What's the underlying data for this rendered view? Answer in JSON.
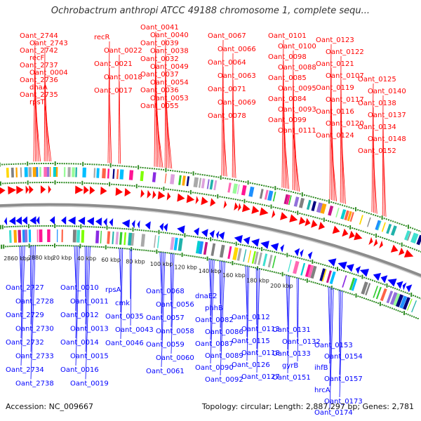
{
  "title": "Ochrobactrum anthropi ATCC 49188 chromosome 1, complete sequ...",
  "footer": {
    "accession": "Accession: NC_009667",
    "summary": "Topology: circular; Length: 2,887,297 bp; Genes: 2,781"
  },
  "colors": {
    "plus": "#ff0000",
    "minus": "#0000ff",
    "ring": "#8c8c8c",
    "dots": "#2e8b22"
  },
  "scale_ticks": [
    "2860 kbp",
    "2880 kbp",
    "20 kbp",
    "40 kbp",
    "60 kbp",
    "80 kbp",
    "100 kbp",
    "120 kbp",
    "140 kbp",
    "160 kbp",
    "180 kbp",
    "200 kbp"
  ],
  "top_labels": [
    "Oant_2744",
    "Oant_2743",
    "Oant_2742",
    "recF",
    "Oant_2737",
    "Oant_0004",
    "Oant_2736",
    "dnaA",
    "Oant_2735",
    "rpsT",
    "recR",
    "Oant_0022",
    "Oant_0021",
    "Oant_0018",
    "Oant_0017",
    "Oant_0041",
    "Oant_0040",
    "Oant_0039",
    "Oant_0038",
    "Oant_0032",
    "Oant_0049",
    "Oant_0037",
    "Oant_0054",
    "Oant_0036",
    "Oant_0053",
    "Oant_0055",
    "Oant_0067",
    "Oant_0066",
    "Oant_0064",
    "Oant_0063",
    "Oant_0071",
    "Oant_0069",
    "Oant_0078",
    "Oant_0101",
    "Oant_0100",
    "Oant_0098",
    "Oant_0088",
    "Oant_0085",
    "Oant_0095",
    "Oant_0084",
    "Oant_0093",
    "Oant_0099",
    "Oant_0111",
    "Oant_0123",
    "Oant_0122",
    "Oant_0121",
    "Oant_0107",
    "Oant_0119",
    "Oant_0117",
    "Oant_0116",
    "Oant_0120",
    "Oant_0124",
    "Oant_0125",
    "Oant_0140",
    "Oant_0138",
    "Oant_0137",
    "Oant_0134",
    "Oant_0148",
    "Oant_0152"
  ],
  "bottom_labels": [
    "Oant_2727",
    "Oant_2728",
    "Oant_2729",
    "Oant_2730",
    "Oant_2732",
    "Oant_2733",
    "Oant_2734",
    "Oant_2738",
    "Oant_0010",
    "Oant_0011",
    "Oant_0012",
    "Oant_0013",
    "Oant_0014",
    "Oant_0015",
    "Oant_0016",
    "Oant_0019",
    "rpsA",
    "cmk",
    "Oant_0035",
    "Oant_0043",
    "Oant_0046",
    "Oant_0068",
    "Oant_0056",
    "Oant_0057",
    "Oant_0058",
    "Oant_0059",
    "Oant_0060",
    "Oant_0061",
    "dnaE2",
    "phhB",
    "Oant_0082",
    "Oant_0086",
    "Oant_0087",
    "Oant_0089",
    "Oant_0090",
    "Oant_0092",
    "Oant_0112",
    "Oant_0113",
    "Oant_0115",
    "Oant_0118",
    "Oant_0126",
    "Oant_0127",
    "Oant_0131",
    "Oant_0132",
    "Oant_0133",
    "gyrB",
    "Oant_0151",
    "Oant_0153",
    "Oant_0154",
    "ihfB",
    "Oant_0157",
    "hrcA",
    "Oant_0173",
    "Oant_0174"
  ]
}
